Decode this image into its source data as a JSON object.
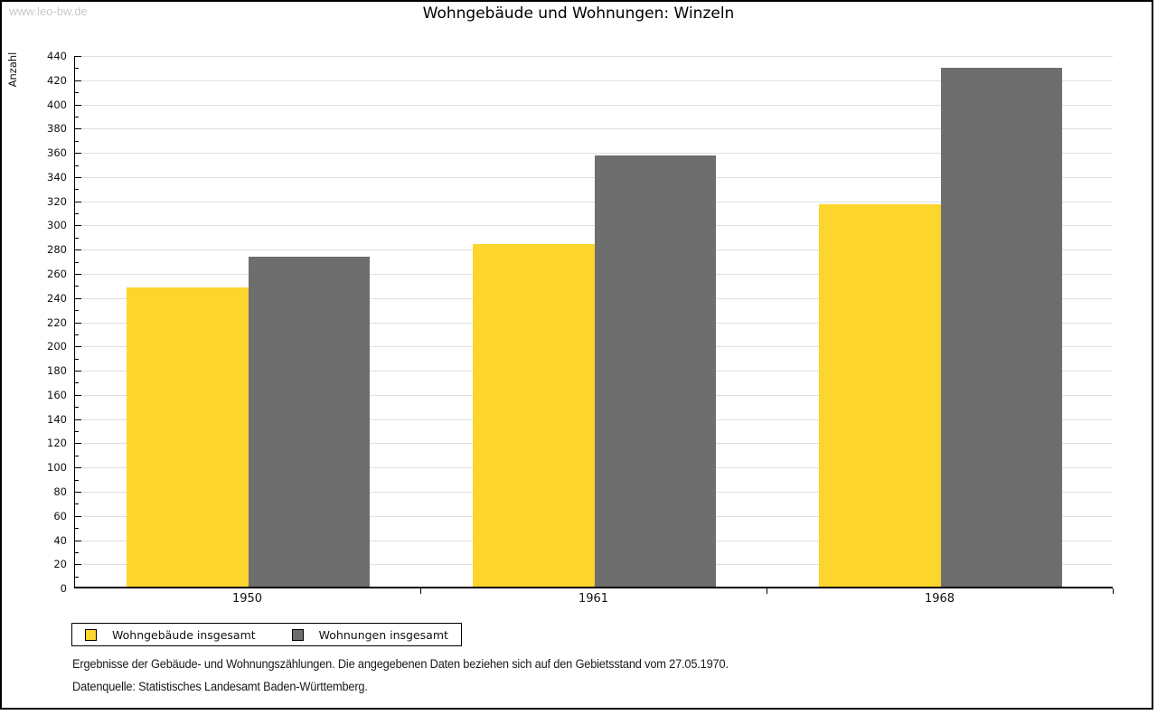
{
  "watermark": "www.leo-bw.de",
  "title": "Wohngebäude und Wohnungen: Winzeln",
  "chart_data": {
    "type": "bar",
    "title": "Wohngebäude und Wohnungen: Winzeln",
    "categories": [
      "1950",
      "1961",
      "1968"
    ],
    "series": [
      {
        "name": "Wohngebäude insgesamt",
        "color": "#fcd52d",
        "values": [
          247,
          283,
          316
        ]
      },
      {
        "name": "Wohnungen insgesamt",
        "color": "#6e6e6e",
        "values": [
          273,
          356,
          429
        ]
      }
    ],
    "xlabel": "",
    "ylabel": "Anzahl",
    "ylim": [
      0,
      440
    ],
    "ytick_major": 20,
    "ytick_minor": 10,
    "grid": true,
    "gridline_color": "#dfdfdf",
    "legend_position": "bottom-left"
  },
  "footnotes": {
    "line1": "Ergebnisse der Gebäude- und Wohnungszählungen. Die angegebenen Daten beziehen sich auf den Gebietsstand vom 27.05.1970.",
    "line2": "Datenquelle: Statistisches Landesamt Baden-Württemberg."
  }
}
